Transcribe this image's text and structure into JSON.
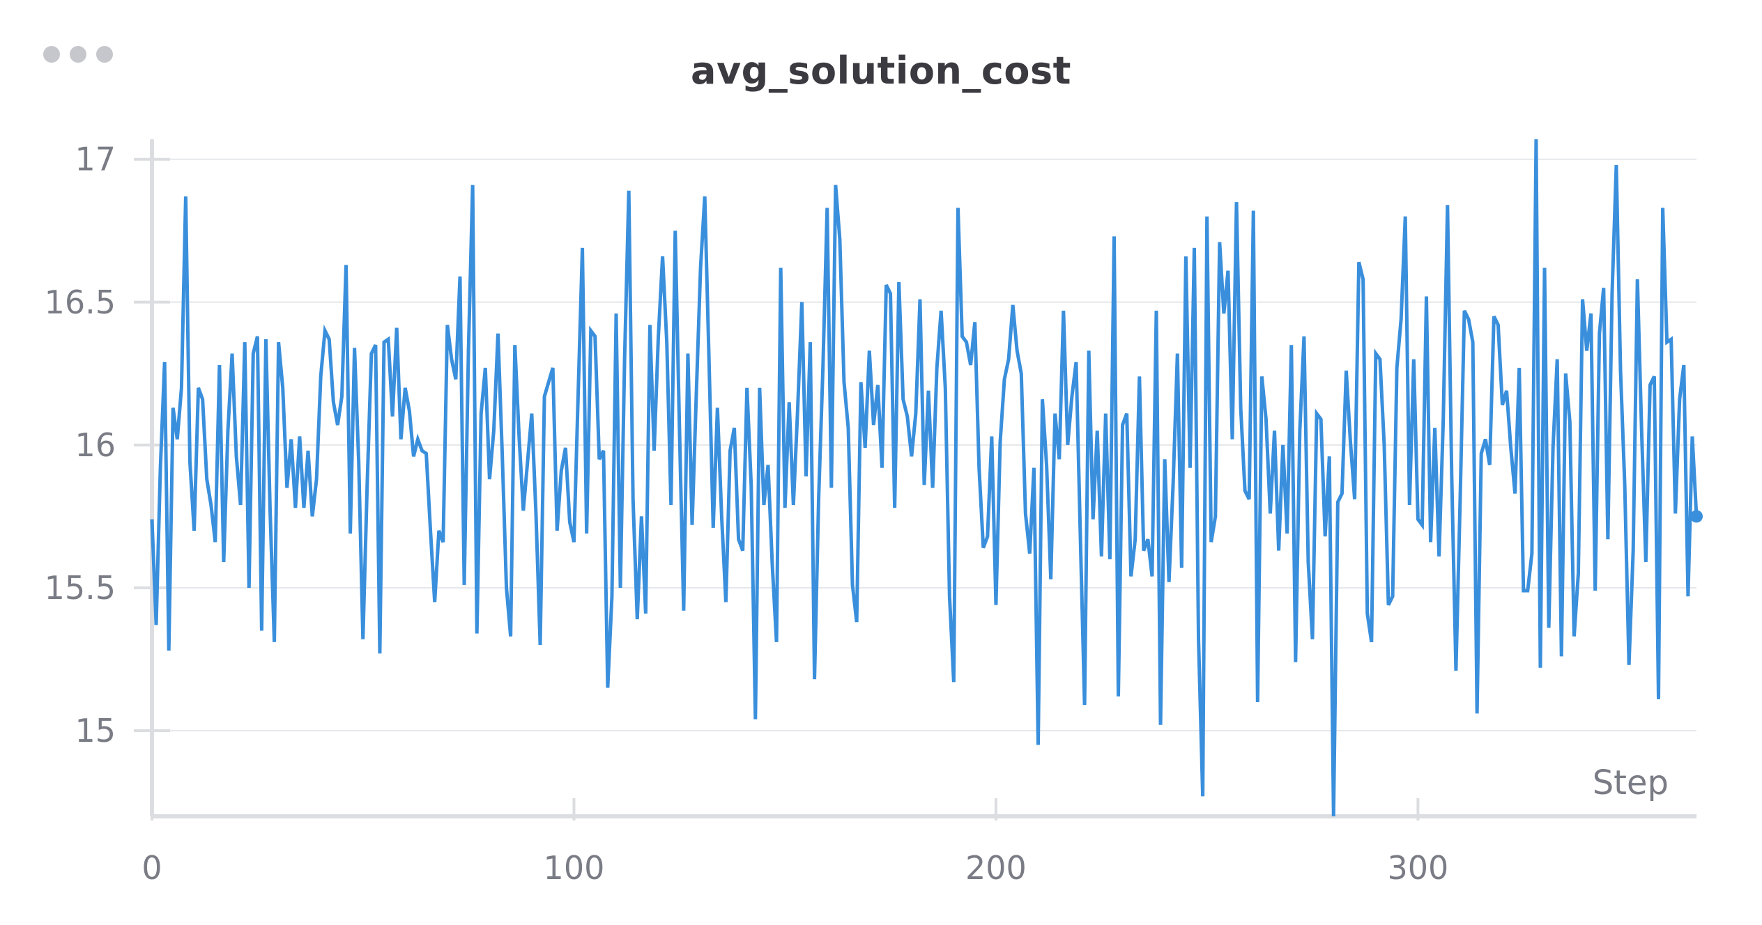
{
  "panel": {
    "menu_icon": "more-horizontal-icon"
  },
  "chart_data": {
    "type": "line",
    "title": "avg_solution_cost",
    "xlabel": "Step",
    "ylabel": "",
    "xlim": [
      0,
      366
    ],
    "ylim": [
      14.7,
      17.07
    ],
    "x_ticks": [
      0,
      100,
      200,
      300
    ],
    "x_tick_labels": [
      "0",
      "100",
      "200",
      "300"
    ],
    "y_ticks": [
      15,
      15.5,
      16,
      16.5,
      17
    ],
    "y_tick_labels": [
      "15",
      "15.5",
      "16",
      "16.5",
      "17"
    ],
    "grid": true,
    "legend": "none",
    "colors": {
      "line": "#3a8fdc",
      "grid": "#e6e7ea",
      "axis": "#dcdde0",
      "tick_text": "#7a7c85",
      "title": "#3a3a40"
    },
    "series": [
      {
        "values": [
          15.74,
          15.37,
          15.92,
          16.29,
          15.28,
          16.13,
          16.02,
          16.2,
          16.87,
          15.94,
          15.7,
          16.2,
          16.16,
          15.88,
          15.79,
          15.66,
          16.28,
          15.59,
          16.05,
          16.32,
          15.96,
          15.79,
          16.36,
          15.5,
          16.32,
          16.38,
          15.35,
          16.37,
          15.77,
          15.31,
          16.36,
          16.2,
          15.85,
          16.02,
          15.78,
          16.03,
          15.78,
          15.98,
          15.75,
          15.88,
          16.24,
          16.4,
          16.37,
          16.15,
          16.07,
          16.17,
          16.63,
          15.69,
          16.34,
          15.94,
          15.32,
          15.86,
          16.32,
          16.35,
          15.27,
          16.36,
          16.37,
          16.1,
          16.41,
          16.02,
          16.2,
          16.12,
          15.96,
          16.02,
          15.98,
          15.97,
          15.7,
          15.45,
          15.7,
          15.66,
          16.42,
          16.3,
          16.23,
          16.59,
          15.51,
          16.33,
          16.91,
          15.34,
          16.11,
          16.27,
          15.88,
          16.05,
          16.39,
          15.97,
          15.5,
          15.33,
          16.35,
          16.03,
          15.77,
          15.94,
          16.11,
          15.76,
          15.3,
          16.17,
          16.22,
          16.27,
          15.7,
          15.91,
          15.99,
          15.73,
          15.66,
          16.18,
          16.69,
          15.69,
          16.4,
          16.38,
          15.95,
          15.98,
          15.15,
          15.47,
          16.46,
          15.5,
          16.3,
          16.89,
          15.81,
          15.39,
          15.75,
          15.41,
          16.42,
          15.98,
          16.38,
          16.66,
          16.36,
          15.79,
          16.75,
          16.06,
          15.42,
          16.32,
          15.72,
          16.18,
          16.62,
          16.87,
          16.3,
          15.71,
          16.13,
          15.75,
          15.45,
          15.98,
          16.06,
          15.67,
          15.63,
          16.2,
          15.86,
          15.04,
          16.2,
          15.79,
          15.93,
          15.58,
          15.31,
          16.62,
          15.78,
          16.15,
          15.79,
          16.12,
          16.5,
          15.89,
          16.36,
          15.18,
          15.82,
          16.27,
          16.83,
          15.85,
          16.91,
          16.72,
          16.22,
          16.06,
          15.51,
          15.38,
          16.22,
          15.99,
          16.33,
          16.07,
          16.21,
          15.92,
          16.56,
          16.53,
          15.78,
          16.57,
          16.16,
          16.1,
          15.96,
          16.11,
          16.51,
          15.86,
          16.19,
          15.85,
          16.27,
          16.47,
          16.2,
          15.47,
          15.17,
          16.83,
          16.38,
          16.36,
          16.28,
          16.43,
          15.92,
          15.64,
          15.68,
          16.03,
          15.44,
          16.01,
          16.23,
          16.3,
          16.49,
          16.33,
          16.25,
          15.76,
          15.62,
          15.92,
          14.95,
          16.16,
          15.93,
          15.53,
          16.11,
          15.95,
          16.47,
          16.0,
          16.17,
          16.29,
          15.68,
          15.09,
          16.33,
          15.74,
          16.05,
          15.61,
          16.11,
          15.6,
          16.73,
          15.12,
          16.07,
          16.11,
          15.54,
          15.67,
          16.24,
          15.63,
          15.67,
          15.54,
          16.47,
          15.02,
          15.95,
          15.52,
          15.87,
          16.32,
          15.57,
          16.66,
          15.92,
          16.69,
          15.32,
          14.77,
          16.8,
          15.66,
          15.75,
          16.71,
          16.46,
          16.61,
          16.02,
          16.85,
          16.13,
          15.84,
          15.81,
          16.82,
          15.1,
          16.24,
          16.09,
          15.76,
          16.05,
          15.63,
          16.0,
          15.69,
          16.35,
          15.24,
          16.05,
          16.38,
          15.59,
          15.32,
          16.11,
          16.09,
          15.68,
          15.96,
          14.7,
          15.8,
          15.83,
          16.26,
          16.01,
          15.81,
          16.64,
          16.58,
          15.41,
          15.31,
          16.32,
          16.3,
          16.0,
          15.44,
          15.47,
          16.27,
          16.44,
          16.8,
          15.79,
          16.3,
          15.74,
          15.72,
          16.52,
          15.66,
          16.06,
          15.61,
          16.09,
          16.84,
          15.89,
          15.21,
          15.81,
          16.47,
          16.44,
          16.36,
          15.06,
          15.97,
          16.02,
          15.93,
          16.45,
          16.42,
          16.14,
          16.19,
          15.99,
          15.83,
          16.27,
          15.49,
          15.49,
          15.62,
          17.07,
          15.22,
          16.62,
          15.36,
          15.99,
          16.3,
          15.26,
          16.25,
          16.08,
          15.33,
          15.55,
          16.51,
          16.33,
          16.46,
          15.49,
          16.39,
          16.55,
          15.67,
          16.53,
          16.98,
          16.26,
          15.86,
          15.23,
          15.63,
          16.58,
          16.05,
          15.59,
          16.21,
          16.24,
          15.11,
          16.83,
          16.36,
          16.37,
          15.76,
          16.16,
          16.28,
          15.47,
          16.03,
          15.75
        ]
      }
    ]
  }
}
